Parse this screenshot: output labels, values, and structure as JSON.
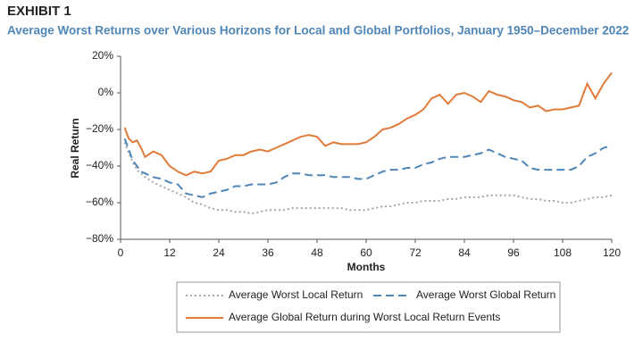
{
  "chart_data": {
    "type": "line",
    "title": "EXHIBIT 1",
    "subtitle": "Average Worst Returns over Various Horizons for Local and Global Portfolios, January 1950–December 2022",
    "x_label": "Months",
    "y_label": "Real Return",
    "x": [
      1,
      2,
      3,
      4,
      5,
      6,
      8,
      10,
      12,
      14,
      16,
      18,
      20,
      22,
      24,
      26,
      28,
      30,
      32,
      34,
      36,
      38,
      40,
      42,
      44,
      46,
      48,
      50,
      52,
      54,
      56,
      58,
      60,
      62,
      64,
      66,
      68,
      70,
      72,
      74,
      76,
      78,
      80,
      82,
      84,
      86,
      88,
      90,
      92,
      94,
      96,
      98,
      100,
      102,
      104,
      106,
      108,
      110,
      112,
      114,
      116,
      118,
      120
    ],
    "series": [
      {
        "name": "Average Worst Local Return",
        "color": "#a6a6a6",
        "dash": "dotted",
        "values": [
          -27,
          -33,
          -38,
          -42,
          -44,
          -46,
          -49,
          -51,
          -53,
          -55,
          -57,
          -60,
          -61,
          -63,
          -64,
          -64,
          -65,
          -65,
          -66,
          -65,
          -64,
          -64,
          -64,
          -63,
          -63,
          -63,
          -63,
          -63,
          -63,
          -63,
          -64,
          -64,
          -64,
          -63,
          -62,
          -62,
          -61,
          -60,
          -60,
          -59,
          -59,
          -59,
          -58,
          -58,
          -57,
          -57,
          -57,
          -56,
          -56,
          -56,
          -56,
          -57,
          -58,
          -58,
          -59,
          -59,
          -60,
          -60,
          -59,
          -58,
          -57,
          -57,
          -56
        ]
      },
      {
        "name": "Average Worst Global Return",
        "color": "#4f86b8",
        "dash": "dashed",
        "values": [
          -25,
          -31,
          -37,
          -40,
          -43,
          -44,
          -46,
          -47,
          -49,
          -50,
          -55,
          -56,
          -57,
          -55,
          -54,
          -53,
          -51,
          -51,
          -50,
          -50,
          -50,
          -49,
          -46,
          -44,
          -44,
          -45,
          -45,
          -45,
          -46,
          -46,
          -46,
          -47,
          -47,
          -45,
          -43,
          -42,
          -42,
          -41,
          -41,
          -39,
          -38,
          -36,
          -35,
          -35,
          -35,
          -34,
          -33,
          -31,
          -33,
          -35,
          -36,
          -37,
          -41,
          -42,
          -42,
          -42,
          -42,
          -42,
          -40,
          -35,
          -33,
          -30,
          -29
        ]
      },
      {
        "name": "Average Global Return during Worst Local Return Events",
        "color": "#e07b39",
        "dash": "solid",
        "values": [
          -19,
          -25,
          -27,
          -26,
          -30,
          -35,
          -32,
          -34,
          -40,
          -43,
          -45,
          -43,
          -44,
          -43,
          -37,
          -36,
          -34,
          -34,
          -32,
          -31,
          -32,
          -30,
          -28,
          -26,
          -24,
          -23,
          -24,
          -29,
          -27,
          -28,
          -28,
          -28,
          -27,
          -24,
          -20,
          -19,
          -17,
          -14,
          -12,
          -9,
          -3,
          -1,
          -6,
          -1,
          0,
          -2,
          -5,
          1,
          -1,
          -2,
          -4,
          -5,
          -8,
          -7,
          -10,
          -9,
          -9,
          -8,
          -7,
          5,
          -3,
          5,
          11
        ]
      }
    ],
    "xlim": [
      0,
      120
    ],
    "xticks": [
      0,
      12,
      24,
      36,
      48,
      60,
      72,
      84,
      96,
      108,
      120
    ],
    "ylim": [
      -80,
      20
    ],
    "yticks": [
      {
        "value": 20,
        "label": "20%"
      },
      {
        "value": 0,
        "label": "0%"
      },
      {
        "value": -20,
        "label": "−20%"
      },
      {
        "value": -40,
        "label": "−40%"
      },
      {
        "value": -60,
        "label": "−60%"
      },
      {
        "value": -80,
        "label": "−80%"
      }
    ],
    "grid": false
  }
}
